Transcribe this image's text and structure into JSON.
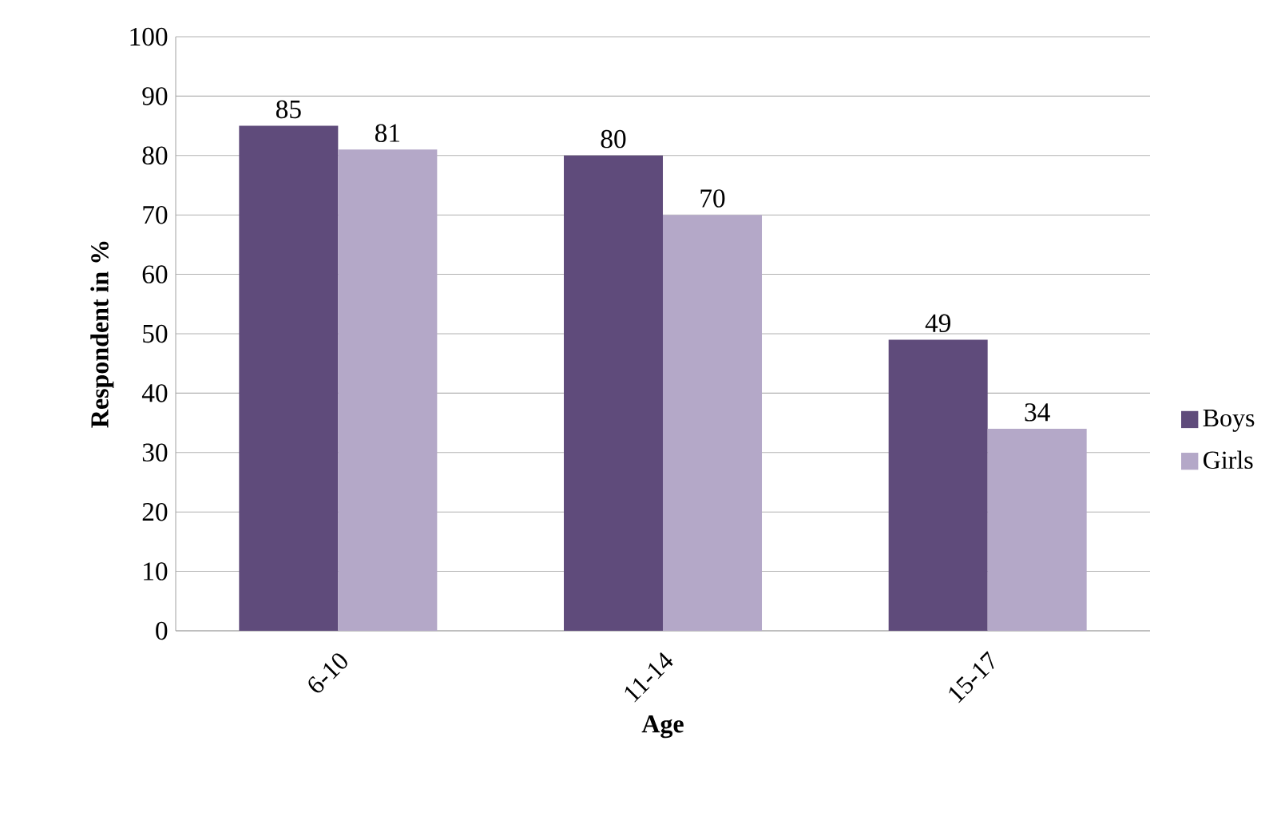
{
  "chart_data": {
    "type": "bar",
    "categories": [
      "6-10",
      "11-14",
      "15-17"
    ],
    "series": [
      {
        "name": "Boys",
        "color": "#5f4b7b",
        "values": [
          85,
          80,
          49
        ]
      },
      {
        "name": "Girls",
        "color": "#b4a8c8",
        "values": [
          81,
          70,
          34
        ]
      }
    ],
    "xlabel": "Age",
    "ylabel": "Respondent in %",
    "ylim": [
      0,
      100
    ],
    "yticks": [
      0,
      10,
      20,
      30,
      40,
      50,
      60,
      70,
      80,
      90,
      100
    ],
    "grid": "y",
    "legend": "right",
    "data_labels": true
  }
}
